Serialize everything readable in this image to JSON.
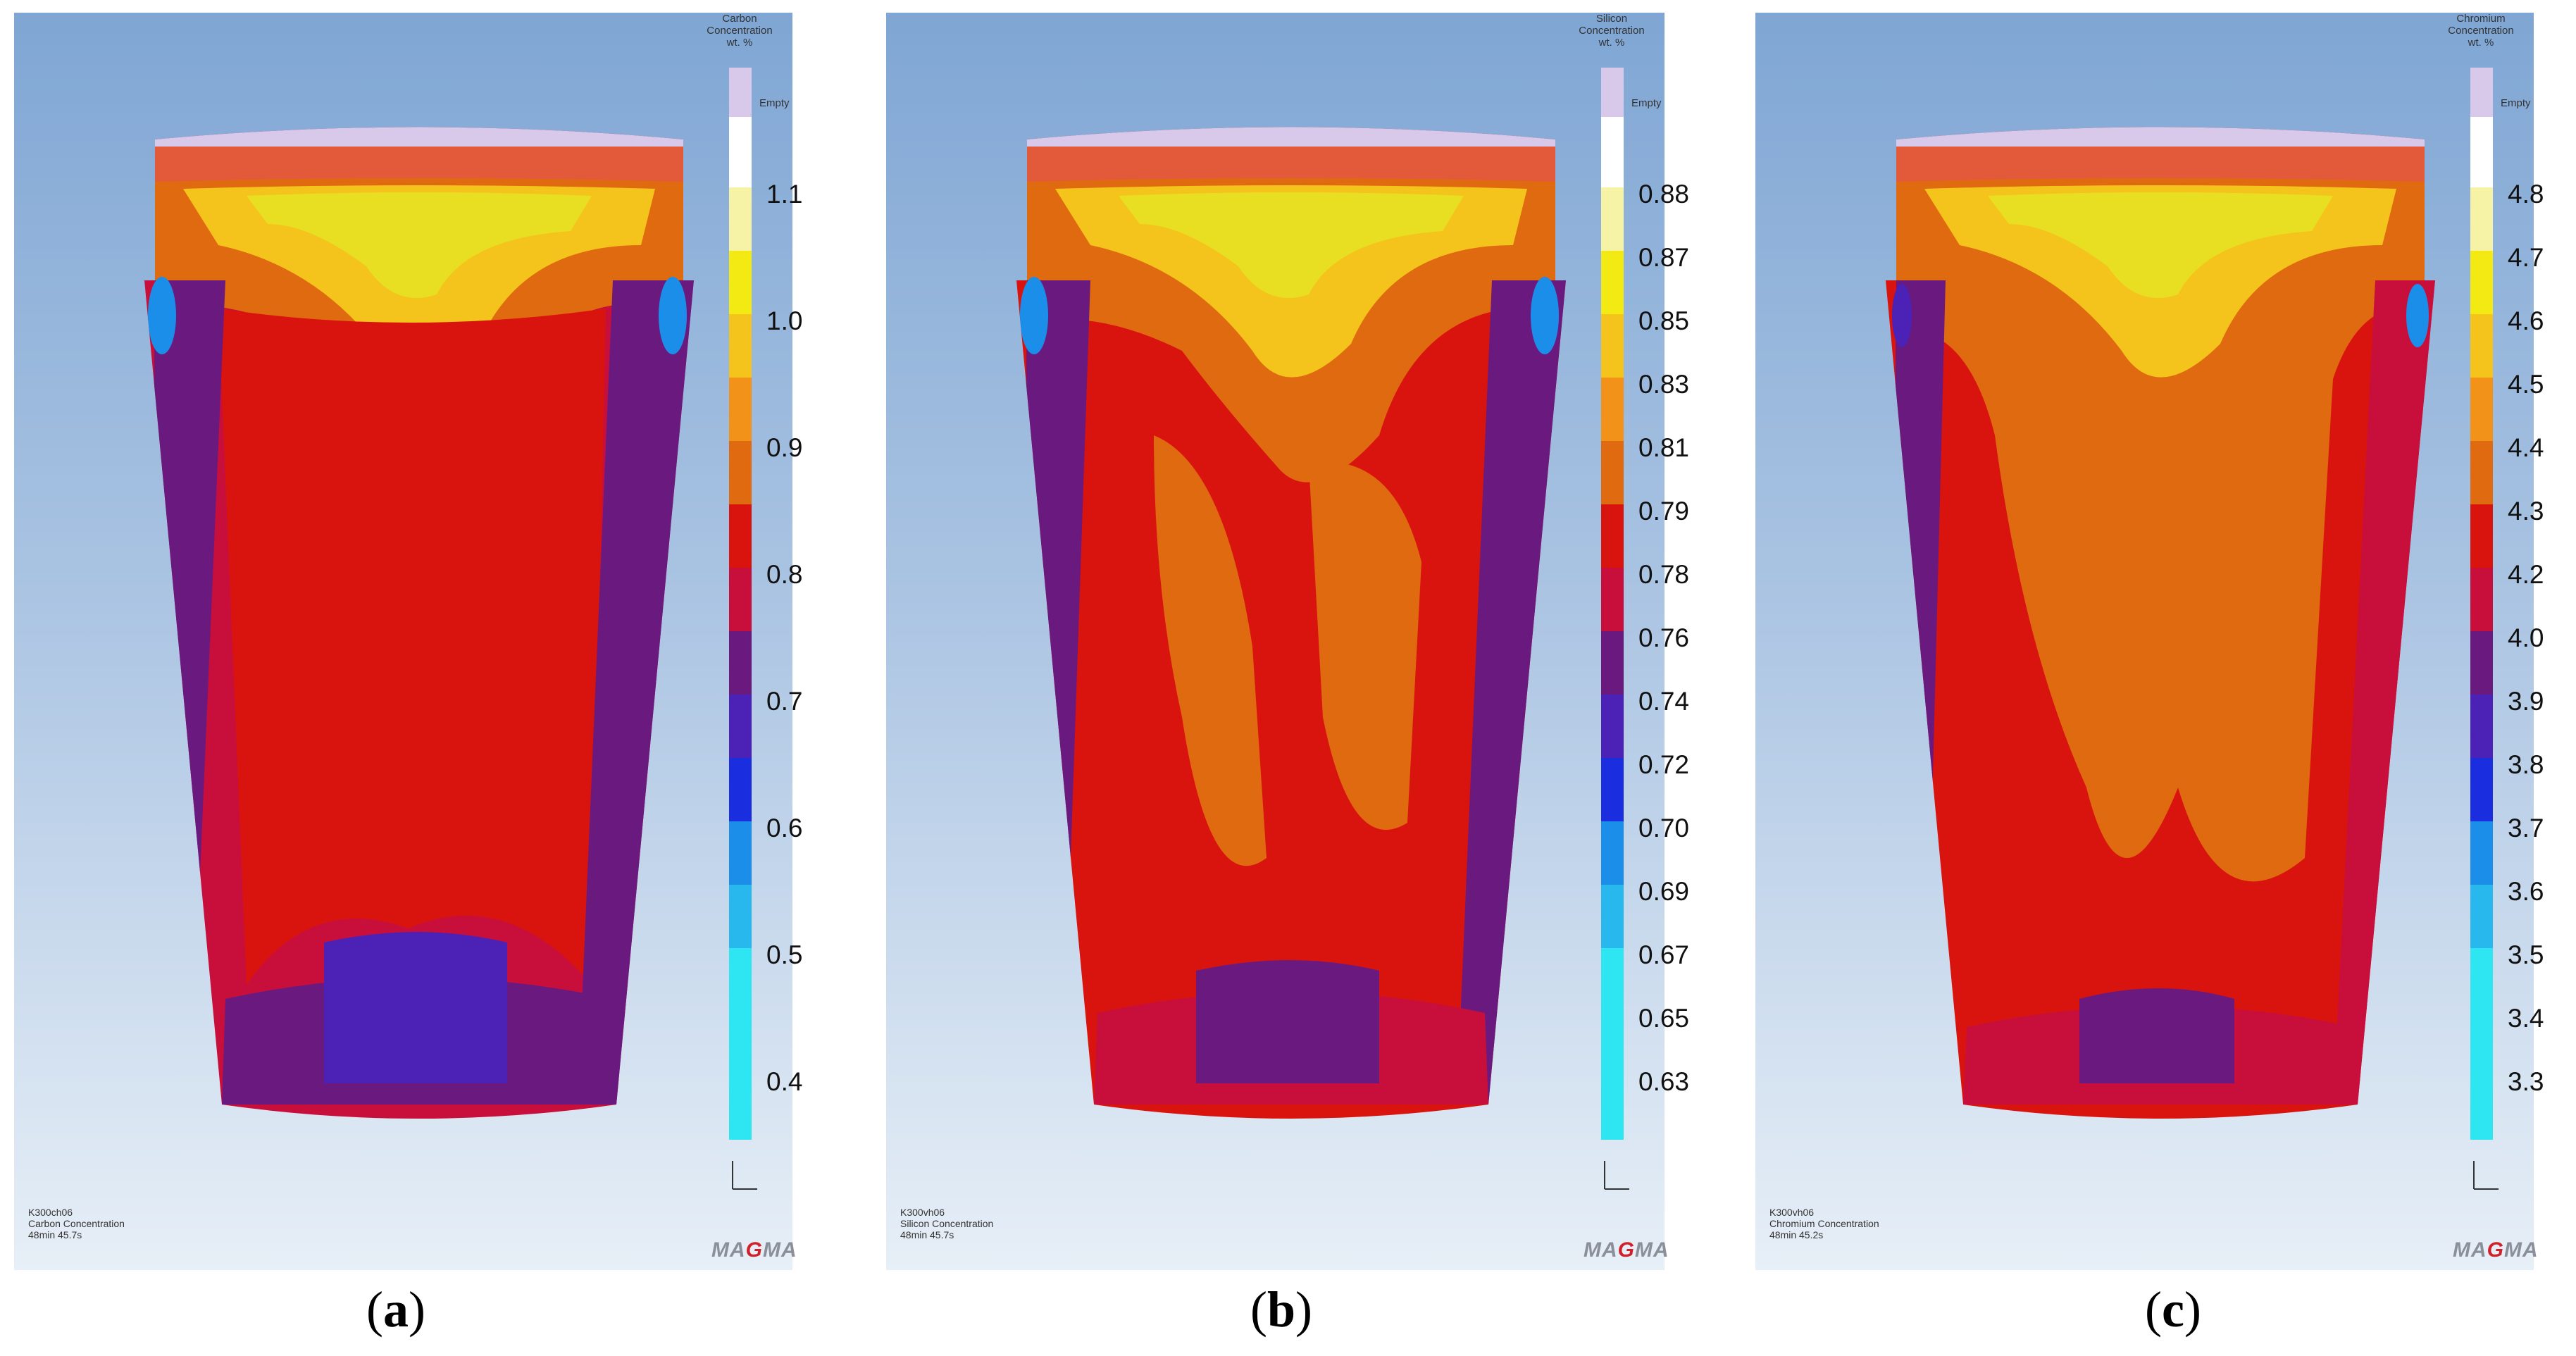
{
  "panels": [
    {
      "id": "a",
      "label_open": "(",
      "label_letter": "a",
      "label_close": ")",
      "legend_title": "Carbon\nConcentration\nwt. %",
      "legend_empty": "Empty",
      "ticks": [
        "1.1",
        "1.0",
        "0.9",
        "0.8",
        "0.7",
        "0.6",
        "0.5",
        "0.4"
      ],
      "caption_line1": "K300ch06",
      "caption_line2": "Carbon Concentration",
      "caption_line3": "48min 45.7s",
      "logo_pre": "MA",
      "logo_g": "G",
      "logo_post": "MA"
    },
    {
      "id": "b",
      "label_open": "(",
      "label_letter": "b",
      "label_close": ")",
      "legend_title": "Silicon\nConcentration\nwt. %",
      "legend_empty": "Empty",
      "ticks": [
        "0.88",
        "0.87",
        "0.85",
        "0.83",
        "0.81",
        "0.79",
        "0.78",
        "0.76",
        "0.74",
        "0.72",
        "0.70",
        "0.69",
        "0.67",
        "0.65",
        "0.63"
      ],
      "caption_line1": "K300vh06",
      "caption_line2": "Silicon Concentration",
      "caption_line3": "48min 45.7s",
      "logo_pre": "MA",
      "logo_g": "G",
      "logo_post": "MA"
    },
    {
      "id": "c",
      "label_open": "(",
      "label_letter": "c",
      "label_close": ")",
      "legend_title": "Chromium\nConcentration\nwt. %",
      "legend_empty": "Empty",
      "ticks": [
        "4.8",
        "4.7",
        "4.6",
        "4.5",
        "4.4",
        "4.3",
        "4.2",
        "4.0",
        "3.9",
        "3.8",
        "3.7",
        "3.6",
        "3.5",
        "3.4",
        "3.3"
      ],
      "caption_line1": "K300vh06",
      "caption_line2": "Chromium Concentration",
      "caption_line3": "48min 45.2s",
      "logo_pre": "MA",
      "logo_g": "G",
      "logo_post": "MA"
    }
  ],
  "colors": {
    "empty": "#d8c8ea",
    "white": "#ffffff",
    "pale_yellow": "#f6f3a6",
    "yellow": "#f2ea12",
    "gold": "#f5c41c",
    "orange": "#f29218",
    "dark_orange": "#e06a10",
    "red": "#d9140f",
    "crimson": "#c80f3c",
    "plum": "#6a1a7e",
    "violet": "#4b22b5",
    "blue": "#1a2ee0",
    "azure": "#1a8ee8",
    "sky": "#28b8ee",
    "cyan": "#2ee6f2"
  }
}
